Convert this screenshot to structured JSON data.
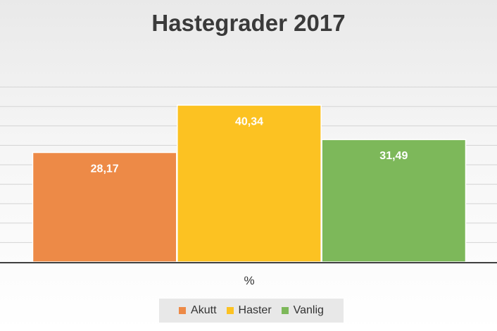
{
  "chart_data": {
    "type": "bar",
    "title": "Hastegrader 2017",
    "categories": [
      "%"
    ],
    "series": [
      {
        "name": "Akutt",
        "values": [
          28.17
        ],
        "label": "28,17",
        "color": "#ed8a47"
      },
      {
        "name": "Haster",
        "values": [
          40.34
        ],
        "label": "40,34",
        "color": "#fcc222"
      },
      {
        "name": "Vanlig",
        "values": [
          31.49
        ],
        "label": "31,49",
        "color": "#7db85a"
      }
    ],
    "ylim": [
      0,
      45
    ],
    "grid": true,
    "legend_position": "bottom"
  }
}
